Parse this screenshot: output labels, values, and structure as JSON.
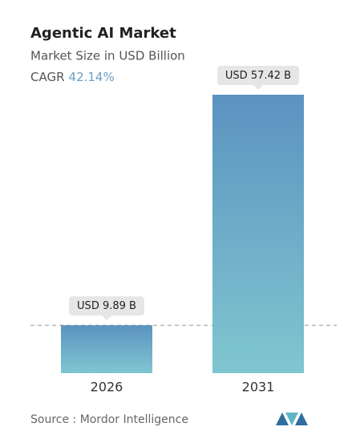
{
  "chart_data": {
    "type": "bar",
    "title": "Agentic AI Market",
    "subtitle": "Market Size in USD Billion",
    "cagr_label": "CAGR",
    "cagr_value": "42.14%",
    "categories": [
      "2026",
      "2031"
    ],
    "values": [
      9.89,
      57.42
    ],
    "value_labels": [
      "USD 9.89 B",
      "USD 57.42 B"
    ],
    "source": "Source :  Mordor Intelligence"
  }
}
